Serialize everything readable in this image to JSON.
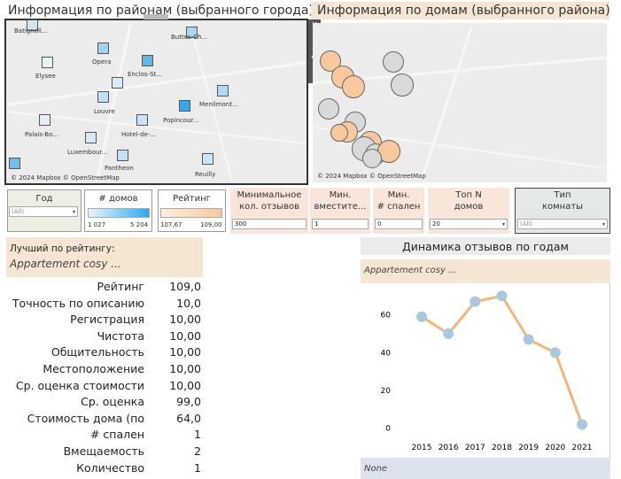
{
  "district_panel": {
    "title": "Информация  по районам (выбранного города)",
    "attribution": "© 2024 Mapbox  © OpenStreetMap",
    "districts": [
      {
        "label": "Batignoll...",
        "color": "#cfe6f5"
      },
      {
        "label": "Buttes-Ch...",
        "color": "#a8d6f5"
      },
      {
        "label": "Opera",
        "color": "#9fd3f4"
      },
      {
        "label": "Elysee",
        "color": "#e6f1f8"
      },
      {
        "label": "Enclos-St...",
        "color": "#5cb9ee"
      },
      {
        "label": "Louvre",
        "color": "#d8ecf7"
      },
      {
        "label": "Menilmont...",
        "color": "#aedaf6"
      },
      {
        "label": "Popincour...",
        "color": "#2fa8ec"
      },
      {
        "label": "Palais-Bo...",
        "color": "#e2f0f8"
      },
      {
        "label": "Hotel-de-...",
        "color": "#c6e4f6"
      },
      {
        "label": "Luxembour...",
        "color": "#d6ebf7"
      },
      {
        "label": "Pantheon",
        "color": "#c0e1f6"
      },
      {
        "label": "Reuilly",
        "color": "#cbe6f6"
      },
      {
        "label": "",
        "color": "#6cc0f0"
      },
      {
        "label": "",
        "color": "#bfe1f6"
      }
    ]
  },
  "house_panel": {
    "title": "Информация по домам (выбранного района)",
    "attribution": "© 2024 Mapbox  © OpenStreetMap"
  },
  "toolbar": {
    "close_icon": "×",
    "pin_icon": "⌖",
    "popout_icon": "↗",
    "filter_icon": "▼",
    "more_icon": "▾"
  },
  "filters": {
    "year": {
      "label": "Год",
      "value": "(All)"
    },
    "houses": {
      "label": "# домов",
      "min": "1 027",
      "max": "5 204"
    },
    "rating": {
      "label": "Рейтинг",
      "min": "107,67",
      "max": "109,00"
    },
    "min_reviews": {
      "label1": "Минимальное",
      "label2": "кол. отзывов",
      "value": "300"
    },
    "min_capacity": {
      "label1": "Мин.",
      "label2": "вместите...",
      "value": "1"
    },
    "min_bedrooms": {
      "label1": "Мин.",
      "label2": "# спален",
      "value": "0"
    },
    "top_n": {
      "label1": "Топ N",
      "label2": "домов",
      "value": "20"
    },
    "room_type": {
      "label1": "Тип",
      "label2": "комнаты",
      "value": "(All)"
    }
  },
  "best": {
    "header": "Лучший по рейтингу:",
    "name": "Appartement cosy ..."
  },
  "kpis": [
    {
      "label": "Рейтинг",
      "value": "109,0"
    },
    {
      "label": "Точность по описанию",
      "value": "10,0"
    },
    {
      "label": "Регистрация",
      "value": "10,00"
    },
    {
      "label": "Чистота",
      "value": "10,00"
    },
    {
      "label": "Общительность",
      "value": "10,00"
    },
    {
      "label": "Местоположение",
      "value": "10,00"
    },
    {
      "label": "Ср. оценка стоимости",
      "value": "10,00"
    },
    {
      "label": "Ср. оценка",
      "value": "99,0"
    },
    {
      "label": "Стоимость дома (по",
      "value": "64,0"
    },
    {
      "label": "# спален",
      "value": "1"
    },
    {
      "label": "Вмещаемость",
      "value": "2"
    },
    {
      "label": "Количество",
      "value": "1"
    }
  ],
  "dynamics": {
    "title": "Динамика отзывов по годам",
    "series_header": "Appartement cosy ...",
    "footer": "None"
  },
  "colors": {
    "beige": "#f5e6d3",
    "blue_header": "#dde3ee",
    "line": "#f5b57a",
    "point": "#a9c7df",
    "house_orange": "#f9c99d",
    "house_grey": "#d9d9d9"
  },
  "chart_data": {
    "type": "line",
    "x": [
      2015,
      2016,
      2017,
      2018,
      2019,
      2020,
      2021
    ],
    "y": [
      59,
      50,
      67,
      70,
      47,
      40,
      2
    ],
    "xlabel": "",
    "ylabel": "",
    "yticks": [
      0,
      20,
      40,
      60
    ],
    "ylim": [
      -3,
      72
    ],
    "grid": false
  }
}
